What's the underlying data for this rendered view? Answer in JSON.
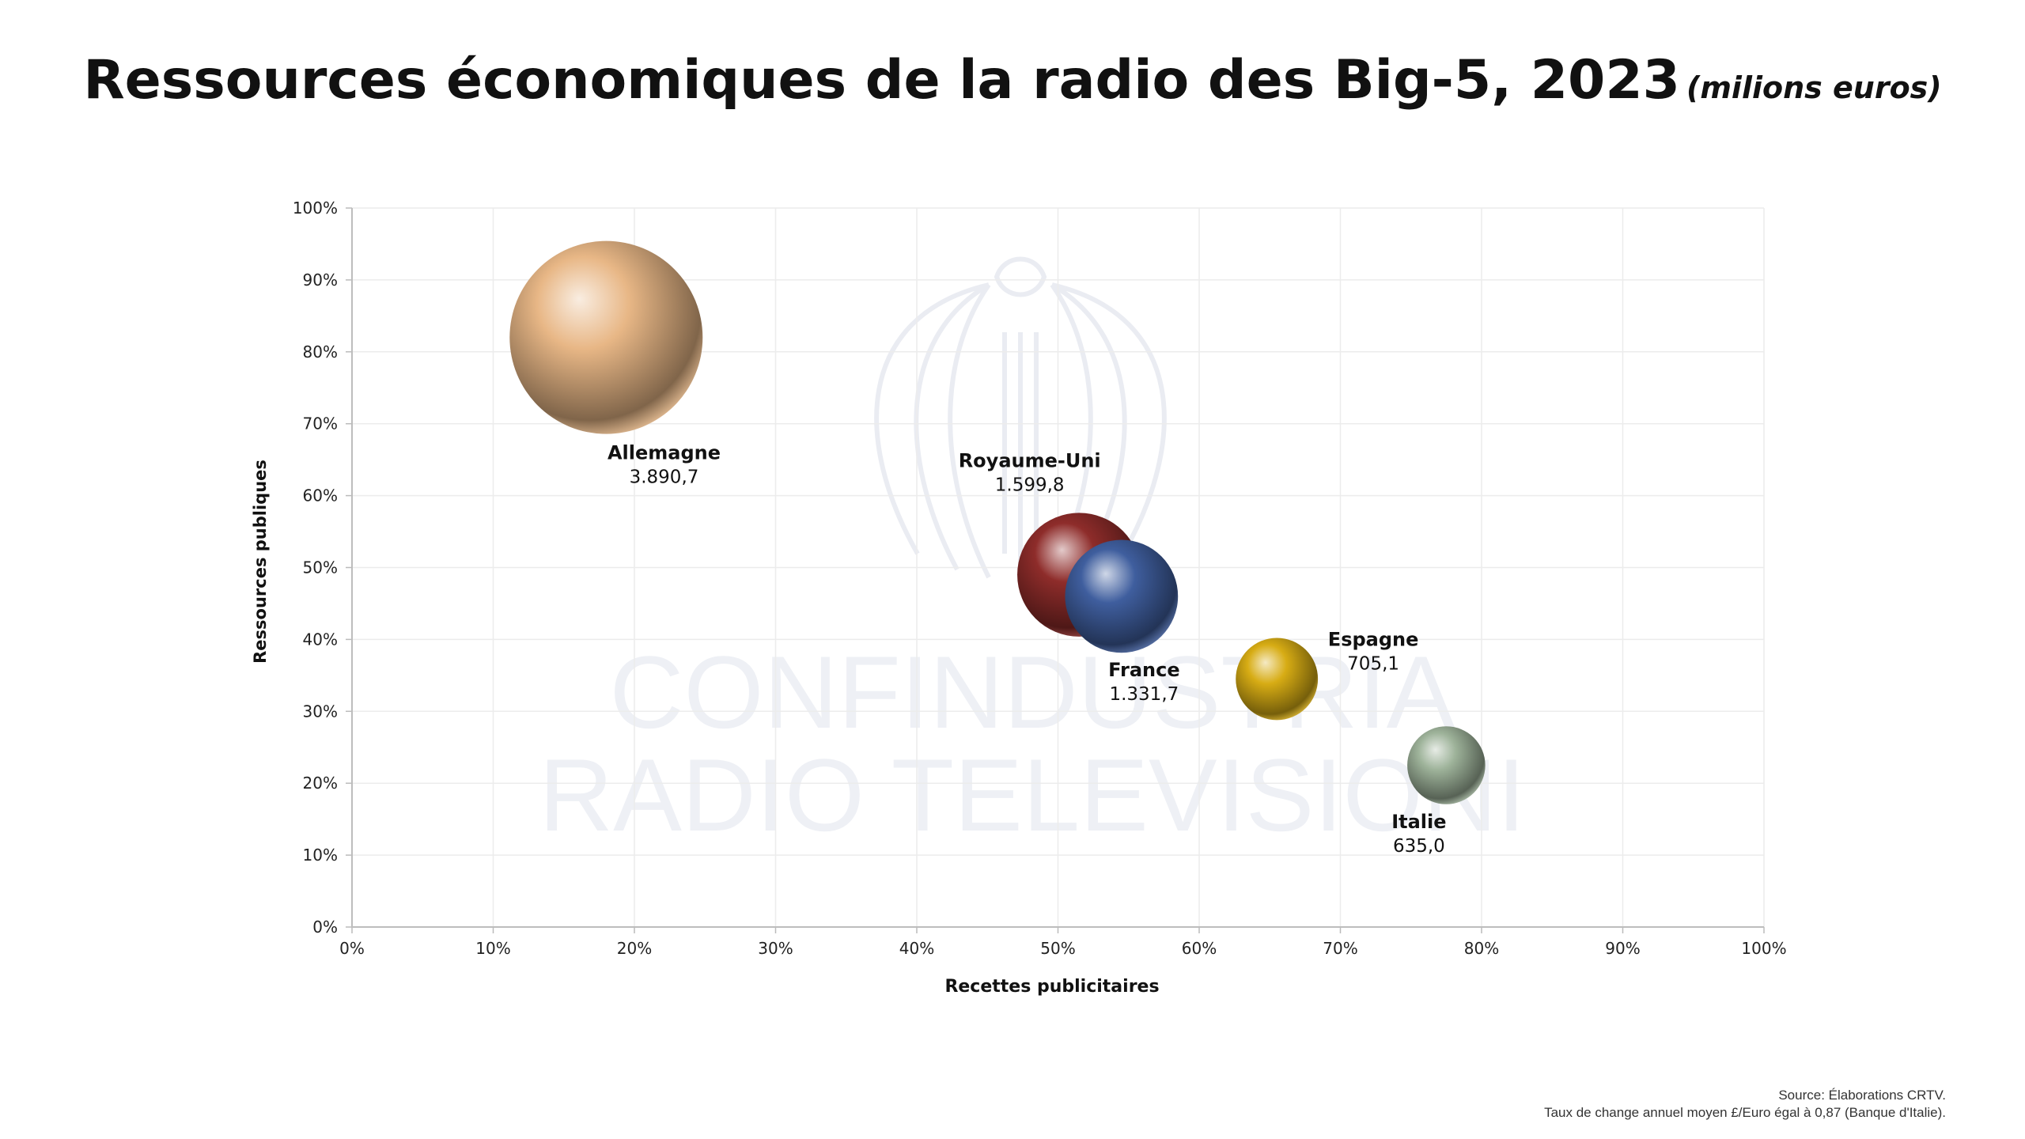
{
  "title": "Ressources économiques de la radio des Big-5, 2023",
  "title_unit": "(milions euros)",
  "watermark": {
    "line1": "CONFINDUSTRIA",
    "line2": "RADIO TELEVISIONI"
  },
  "source": {
    "line1": "Source: Élaborations CRTV.",
    "line2": "Taux de change annuel moyen £/Euro égal à 0,87 (Banque d'Italie)."
  },
  "chart_data": {
    "type": "scatter",
    "xlabel": "Recettes publicitaires",
    "ylabel": "Ressources publiques",
    "xlim": [
      0,
      100
    ],
    "ylim": [
      0,
      100
    ],
    "x_ticks": [
      "0%",
      "10%",
      "20%",
      "30%",
      "40%",
      "50%",
      "60%",
      "70%",
      "80%",
      "90%",
      "100%"
    ],
    "y_ticks": [
      "0%",
      "10%",
      "20%",
      "30%",
      "40%",
      "50%",
      "60%",
      "70%",
      "80%",
      "90%",
      "100%"
    ],
    "grid": true,
    "points": [
      {
        "name": "Allemagne",
        "x": 18,
        "y": 82,
        "value": "3.890,7",
        "size": 3890.7,
        "color": "#E8B786",
        "label_pos": "below-right"
      },
      {
        "name": "Royaume-Uni",
        "x": 51.5,
        "y": 49,
        "value": "1.599,8",
        "size": 1599.8,
        "color": "#8E2C2A",
        "label_pos": "above"
      },
      {
        "name": "France",
        "x": 54.5,
        "y": 46,
        "value": "1.331,7",
        "size": 1331.7,
        "color": "#3F5E9E",
        "label_pos": "below"
      },
      {
        "name": "Espagne",
        "x": 65.5,
        "y": 34.5,
        "value": "705,1",
        "size": 705.1,
        "color": "#D7AC14",
        "label_pos": "right"
      },
      {
        "name": "Italie",
        "x": 77.5,
        "y": 22.5,
        "value": "635,0",
        "size": 635.0,
        "color": "#9EB39A",
        "label_pos": "below"
      }
    ]
  }
}
